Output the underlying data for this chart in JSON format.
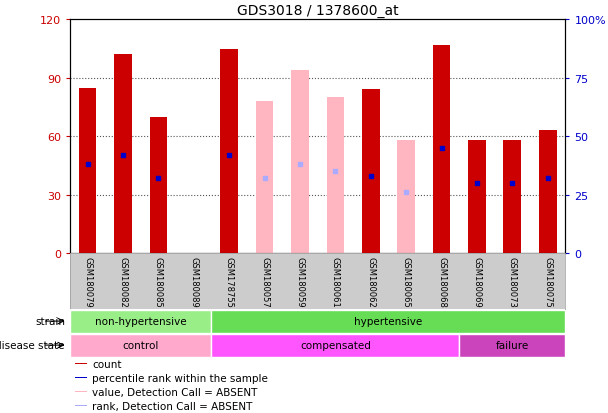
{
  "title": "GDS3018 / 1378600_at",
  "samples": [
    "GSM180079",
    "GSM180082",
    "GSM180085",
    "GSM180089",
    "GSM178755",
    "GSM180057",
    "GSM180059",
    "GSM180061",
    "GSM180062",
    "GSM180065",
    "GSM180068",
    "GSM180069",
    "GSM180073",
    "GSM180075"
  ],
  "count_values": [
    85,
    102,
    70,
    0,
    105,
    0,
    0,
    0,
    84,
    0,
    107,
    58,
    58,
    63
  ],
  "count_absent": [
    false,
    false,
    false,
    false,
    false,
    true,
    true,
    true,
    false,
    true,
    false,
    false,
    false,
    false
  ],
  "absent_values": [
    0,
    0,
    0,
    12,
    0,
    78,
    94,
    80,
    0,
    58,
    0,
    0,
    0,
    0
  ],
  "percentile_values": [
    38,
    42,
    32,
    0,
    42,
    0,
    0,
    0,
    33,
    0,
    45,
    30,
    30,
    32
  ],
  "percentile_absent": [
    false,
    false,
    false,
    false,
    false,
    true,
    true,
    true,
    false,
    true,
    false,
    false,
    false,
    false
  ],
  "absent_rank_values": [
    0,
    0,
    0,
    6,
    0,
    32,
    38,
    35,
    32,
    26,
    0,
    0,
    0,
    0
  ],
  "ylim_left": [
    0,
    120
  ],
  "ylim_right": [
    0,
    100
  ],
  "yticks_left": [
    0,
    30,
    60,
    90,
    120
  ],
  "yticks_right": [
    0,
    25,
    50,
    75,
    100
  ],
  "yticklabels_left": [
    "0",
    "30",
    "60",
    "90",
    "120"
  ],
  "yticklabels_right": [
    "0",
    "25",
    "50",
    "75",
    "100%"
  ],
  "strain_groups": [
    {
      "label": "non-hypertensive",
      "start": 0,
      "end": 4,
      "color": "#99EE88"
    },
    {
      "label": "hypertensive",
      "start": 4,
      "end": 14,
      "color": "#66DD55"
    }
  ],
  "disease_groups": [
    {
      "label": "control",
      "start": 0,
      "end": 4,
      "color": "#FFAACC"
    },
    {
      "label": "compensated",
      "start": 4,
      "end": 11,
      "color": "#FF55FF"
    },
    {
      "label": "failure",
      "start": 11,
      "end": 14,
      "color": "#CC44BB"
    }
  ],
  "bar_color_red": "#CC0000",
  "bar_color_pink": "#FFB6C1",
  "dot_color_blue": "#0000CC",
  "dot_color_lightblue": "#AAAAFF",
  "bg_color": "#FFFFFF",
  "tick_area_color": "#CCCCCC",
  "grid_color": "#555555",
  "left_tick_color": "#CC0000",
  "right_tick_color": "#0000CC",
  "legend_items": [
    {
      "label": "count",
      "color": "#CC0000"
    },
    {
      "label": "percentile rank within the sample",
      "color": "#0000CC"
    },
    {
      "label": "value, Detection Call = ABSENT",
      "color": "#FFB6C1"
    },
    {
      "label": "rank, Detection Call = ABSENT",
      "color": "#AAAAFF"
    }
  ]
}
